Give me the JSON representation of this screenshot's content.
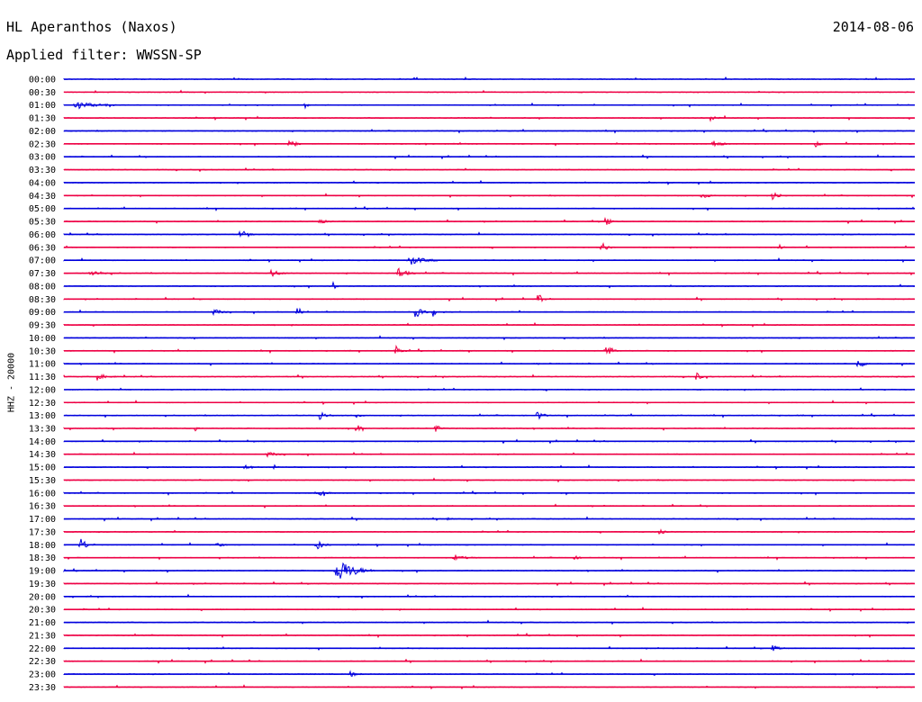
{
  "header": {
    "station": "HL Aperanthos (Naxos)",
    "date": "2014-08-06",
    "filter_label": "Applied filter: WWSSN-SP"
  },
  "chart_data": {
    "type": "helicorder",
    "channel_label": "HHZ - 20000",
    "colors": {
      "even_trace": "#0000dd",
      "odd_trace": "#ee0044"
    },
    "trace_interval_minutes": 30,
    "rows": [
      {
        "time": "00:00",
        "events": []
      },
      {
        "time": "00:30",
        "events": []
      },
      {
        "time": "01:00",
        "events": [
          {
            "minute": 0.5,
            "amp": 4,
            "dur": 1.5
          },
          {
            "minute": 8.5,
            "amp": 5,
            "dur": 0.2
          }
        ]
      },
      {
        "time": "01:30",
        "events": [
          {
            "minute": 22.8,
            "amp": 3,
            "dur": 0.6
          }
        ]
      },
      {
        "time": "02:00",
        "events": []
      },
      {
        "time": "02:30",
        "events": [
          {
            "minute": 7.9,
            "amp": 8,
            "dur": 0.5
          },
          {
            "minute": 22.9,
            "amp": 6,
            "dur": 0.5
          },
          {
            "minute": 26.5,
            "amp": 6,
            "dur": 0.3
          }
        ]
      },
      {
        "time": "03:00",
        "events": []
      },
      {
        "time": "03:30",
        "events": []
      },
      {
        "time": "04:00",
        "events": []
      },
      {
        "time": "04:30",
        "events": [
          {
            "minute": 22.5,
            "amp": 3,
            "dur": 0.6
          },
          {
            "minute": 25.0,
            "amp": 8,
            "dur": 0.4
          }
        ]
      },
      {
        "time": "05:00",
        "events": []
      },
      {
        "time": "05:30",
        "events": [
          {
            "minute": 9.0,
            "amp": 3,
            "dur": 0.5
          },
          {
            "minute": 19.1,
            "amp": 8,
            "dur": 0.3
          }
        ]
      },
      {
        "time": "06:00",
        "events": [
          {
            "minute": 6.2,
            "amp": 3,
            "dur": 0.6
          }
        ]
      },
      {
        "time": "06:30",
        "events": [
          {
            "minute": 18.9,
            "amp": 8,
            "dur": 0.5
          },
          {
            "minute": 25.2,
            "amp": 5,
            "dur": 0.3
          }
        ]
      },
      {
        "time": "07:00",
        "events": [
          {
            "minute": 12.2,
            "amp": 5,
            "dur": 1.2
          }
        ]
      },
      {
        "time": "07:30",
        "events": [
          {
            "minute": 1.0,
            "amp": 3,
            "dur": 1.0
          },
          {
            "minute": 7.3,
            "amp": 5,
            "dur": 0.6
          },
          {
            "minute": 11.8,
            "amp": 7,
            "dur": 0.6
          }
        ]
      },
      {
        "time": "08:00",
        "events": [
          {
            "minute": 9.5,
            "amp": 7,
            "dur": 0.2
          }
        ]
      },
      {
        "time": "08:30",
        "events": [
          {
            "minute": 16.7,
            "amp": 9,
            "dur": 0.3
          }
        ]
      },
      {
        "time": "09:00",
        "events": [
          {
            "minute": 5.3,
            "amp": 4,
            "dur": 0.5
          },
          {
            "minute": 8.2,
            "amp": 6,
            "dur": 0.3
          },
          {
            "minute": 12.4,
            "amp": 7,
            "dur": 0.5
          },
          {
            "minute": 13.0,
            "amp": 8,
            "dur": 0.2
          }
        ]
      },
      {
        "time": "09:30",
        "events": []
      },
      {
        "time": "10:00",
        "events": []
      },
      {
        "time": "10:30",
        "events": [
          {
            "minute": 11.7,
            "amp": 6,
            "dur": 0.4
          },
          {
            "minute": 19.1,
            "amp": 9,
            "dur": 0.5
          }
        ]
      },
      {
        "time": "11:00",
        "events": [
          {
            "minute": 28.0,
            "amp": 6,
            "dur": 0.5
          }
        ]
      },
      {
        "time": "11:30",
        "events": [
          {
            "minute": 1.1,
            "amp": 3,
            "dur": 0.8
          },
          {
            "minute": 22.3,
            "amp": 6,
            "dur": 0.3
          }
        ]
      },
      {
        "time": "12:00",
        "events": []
      },
      {
        "time": "12:30",
        "events": []
      },
      {
        "time": "13:00",
        "events": [
          {
            "minute": 9.0,
            "amp": 6,
            "dur": 0.5
          },
          {
            "minute": 10.3,
            "amp": 3,
            "dur": 0.3
          },
          {
            "minute": 16.7,
            "amp": 7,
            "dur": 0.4
          }
        ]
      },
      {
        "time": "13:30",
        "events": [
          {
            "minute": 4.6,
            "amp": 5,
            "dur": 0.2
          },
          {
            "minute": 10.3,
            "amp": 7,
            "dur": 0.3
          },
          {
            "minute": 13.1,
            "amp": 6,
            "dur": 0.3
          }
        ]
      },
      {
        "time": "14:00",
        "events": []
      },
      {
        "time": "14:30",
        "events": [
          {
            "minute": 7.2,
            "amp": 3,
            "dur": 0.6
          }
        ]
      },
      {
        "time": "15:00",
        "events": [
          {
            "minute": 6.4,
            "amp": 3,
            "dur": 0.5
          },
          {
            "minute": 7.4,
            "amp": 4,
            "dur": 0.2
          }
        ]
      },
      {
        "time": "15:30",
        "events": []
      },
      {
        "time": "16:00",
        "events": [
          {
            "minute": 9.0,
            "amp": 3,
            "dur": 0.6
          }
        ]
      },
      {
        "time": "16:30",
        "events": []
      },
      {
        "time": "17:00",
        "events": [
          {
            "minute": 13.5,
            "amp": 3,
            "dur": 0.2
          }
        ]
      },
      {
        "time": "17:30",
        "events": [
          {
            "minute": 21.0,
            "amp": 4,
            "dur": 0.5
          }
        ]
      },
      {
        "time": "18:00",
        "events": [
          {
            "minute": 0.6,
            "amp": 8,
            "dur": 0.5
          },
          {
            "minute": 5.4,
            "amp": 3,
            "dur": 0.4
          },
          {
            "minute": 8.9,
            "amp": 7,
            "dur": 0.5
          }
        ]
      },
      {
        "time": "18:30",
        "events": [
          {
            "minute": 13.8,
            "amp": 3,
            "dur": 0.8
          },
          {
            "minute": 18.0,
            "amp": 2,
            "dur": 0.4
          }
        ]
      },
      {
        "time": "19:00",
        "events": [
          {
            "minute": 9.7,
            "amp": 14,
            "dur": 1.3
          }
        ]
      },
      {
        "time": "19:30",
        "events": []
      },
      {
        "time": "20:00",
        "events": []
      },
      {
        "time": "20:30",
        "events": []
      },
      {
        "time": "21:00",
        "events": []
      },
      {
        "time": "21:30",
        "events": []
      },
      {
        "time": "22:00",
        "events": [
          {
            "minute": 25.0,
            "amp": 4,
            "dur": 0.4
          }
        ]
      },
      {
        "time": "22:30",
        "events": []
      },
      {
        "time": "23:00",
        "events": [
          {
            "minute": 10.1,
            "amp": 3,
            "dur": 0.5
          }
        ]
      },
      {
        "time": "23:30",
        "events": []
      }
    ]
  }
}
